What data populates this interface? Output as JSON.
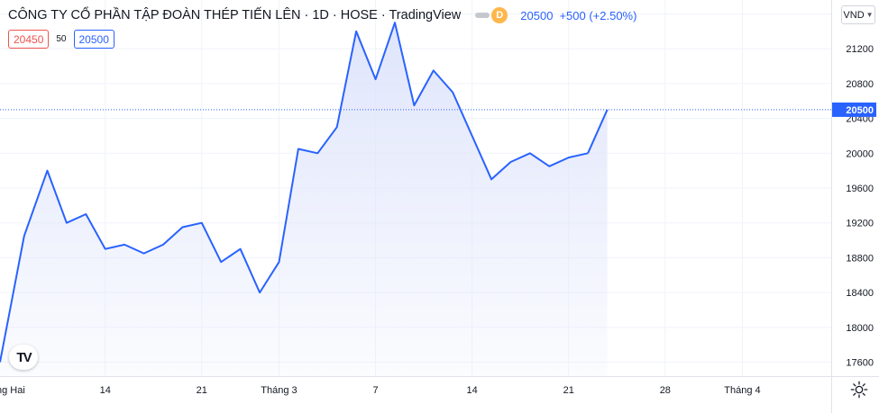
{
  "header": {
    "title": "CÔNG TY CỔ PHẦN TẬP ĐOÀN THÉP TIẾN LÊN · 1D · HOSE · TradingView",
    "status_badge": "D",
    "last_price": "20500",
    "change": "+500 (+2.50%)",
    "currency": "VND"
  },
  "quotes": {
    "bid": "20450",
    "spread": "50",
    "ask": "20500"
  },
  "colors": {
    "line": "#2962ff",
    "fill_top": "#dfe5fb",
    "price_label_bg": "#2962ff",
    "bid": "#ef5350"
  },
  "icons": {
    "logo": "tradingview-logo-icon",
    "settings": "gear-icon"
  },
  "chart_data": {
    "type": "area",
    "title": "",
    "xlabel": "",
    "ylabel": "",
    "ylim": [
      17440,
      21760
    ],
    "y_ticks": [
      17600,
      18000,
      18400,
      18800,
      19200,
      19600,
      20000,
      20400,
      20800,
      21200,
      21600
    ],
    "x_ticks": [
      {
        "label": "ng Hai",
        "x": 0
      },
      {
        "label": "14",
        "x": 6
      },
      {
        "label": "21",
        "x": 11
      },
      {
        "label": "Tháng 3",
        "x": 15
      },
      {
        "label": "7",
        "x": 20
      },
      {
        "label": "14",
        "x": 25
      },
      {
        "label": "21",
        "x": 30
      },
      {
        "label": "28",
        "x": 35
      },
      {
        "label": "Tháng 4",
        "x": 39
      }
    ],
    "xlim": [
      0.55,
      43.6
    ],
    "last_value_label": "20500",
    "grid": true,
    "series": [
      {
        "x": [
          0.55,
          1.8,
          3,
          4,
          5,
          6,
          7,
          8,
          9,
          10,
          11,
          12,
          13,
          14,
          15,
          16,
          17,
          18,
          19,
          20,
          21,
          22,
          23,
          24,
          25,
          26,
          27,
          28,
          29,
          30,
          31
        ],
        "values": [
          17600,
          19050,
          19800,
          19200,
          19300,
          18900,
          18950,
          18850,
          18950,
          19150,
          19200,
          18750,
          18900,
          18400,
          18750,
          20050,
          20000,
          20300,
          21400,
          20850,
          21500,
          20550,
          20950,
          20700,
          20200,
          19700,
          19900,
          20000,
          19850,
          19950,
          20000
        ]
      },
      {
        "x": [
          31,
          32
        ],
        "values": [
          20000,
          20500
        ]
      }
    ]
  }
}
